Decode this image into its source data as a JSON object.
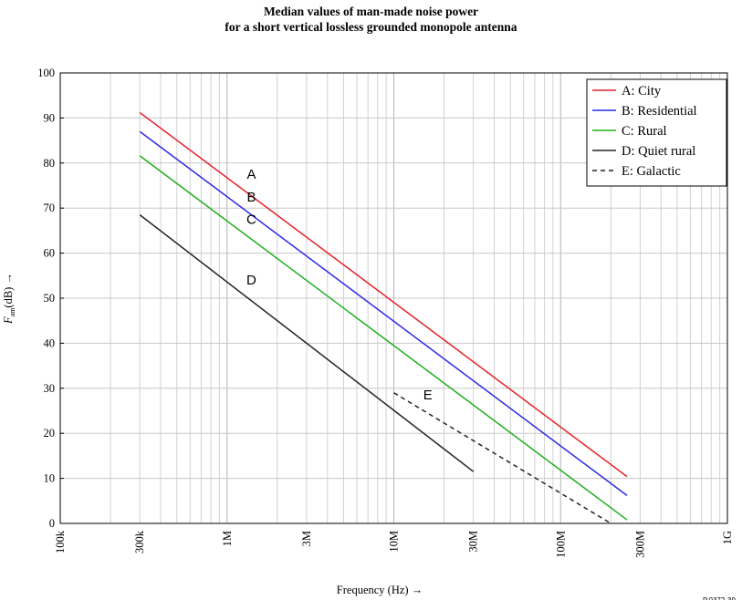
{
  "chart_data": {
    "type": "line",
    "title_lines": [
      "Median values of man-made noise power",
      "for a short vertical lossless grounded monopole antenna"
    ],
    "xlabel": "Frequency (Hz) →",
    "ylabel_main": "F",
    "ylabel_sub": "am",
    "ylabel_rest": "(dB) →",
    "x_scale": "log",
    "xlim": [
      100000,
      1000000000
    ],
    "ylim": [
      0,
      100
    ],
    "grid": true,
    "legend_position": "top-right",
    "x_ticks": [
      {
        "value": 100000,
        "label": "100k"
      },
      {
        "value": 300000,
        "label": "300k"
      },
      {
        "value": 1000000,
        "label": "1M"
      },
      {
        "value": 3000000,
        "label": "3M"
      },
      {
        "value": 10000000,
        "label": "10M"
      },
      {
        "value": 30000000,
        "label": "30M"
      },
      {
        "value": 100000000,
        "label": "100M"
      },
      {
        "value": 300000000,
        "label": "300M"
      },
      {
        "value": 1000000000,
        "label": "1G"
      }
    ],
    "y_ticks": [
      0,
      10,
      20,
      30,
      40,
      50,
      60,
      70,
      80,
      90,
      100
    ],
    "series": [
      {
        "name": "A: City",
        "letter": "A",
        "color": "#e8202a",
        "dash": "solid",
        "label_at": {
          "x": 1400000,
          "y": 76.5
        },
        "x": [
          300000,
          250000000
        ],
        "y": [
          91.2,
          10.4
        ]
      },
      {
        "name": "B: Residential",
        "letter": "B",
        "color": "#2a2ae8",
        "dash": "solid",
        "label_at": {
          "x": 1400000,
          "y": 71.5
        },
        "x": [
          300000,
          250000000
        ],
        "y": [
          87.0,
          6.2
        ]
      },
      {
        "name": "C: Rural",
        "letter": "C",
        "color": "#1fae1f",
        "dash": "solid",
        "label_at": {
          "x": 1400000,
          "y": 66.5
        },
        "x": [
          300000,
          250000000
        ],
        "y": [
          81.6,
          0.8
        ]
      },
      {
        "name": "D: Quiet rural",
        "letter": "D",
        "color": "#222222",
        "dash": "solid",
        "label_at": {
          "x": 1400000,
          "y": 53.0
        },
        "x": [
          300000,
          30000000
        ],
        "y": [
          68.5,
          11.5
        ]
      },
      {
        "name": "E: Galactic",
        "letter": "E",
        "color": "#222222",
        "dash": "dashed",
        "label_at": {
          "x": 16000000,
          "y": 27.5
        },
        "x": [
          10000000,
          200000000
        ],
        "y": [
          29.0,
          0.0
        ]
      }
    ],
    "figure_id": "P.0372-39"
  }
}
